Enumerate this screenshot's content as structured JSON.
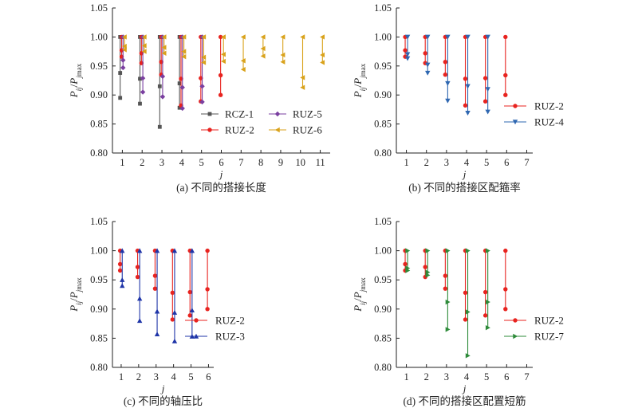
{
  "chart_data": [
    {
      "type": "line",
      "caption": "(a) 不同的搭接长度",
      "xlabel": "j",
      "ylabel": "P_ij/P_jmax",
      "ylim": [
        0.8,
        1.05
      ],
      "yticks": [
        "0.80",
        "0.85",
        "0.90",
        "0.95",
        "1.00",
        "1.05"
      ],
      "xticks": [
        1,
        2,
        3,
        4,
        5,
        6,
        7,
        8,
        9,
        10,
        11
      ],
      "xlim": [
        0.5,
        11.5
      ],
      "legend": {
        "position": "bottom-right",
        "columns": 2,
        "order": [
          "RCZ-1",
          "RUZ-5",
          "RUZ-2",
          "RUZ-6"
        ]
      },
      "series": [
        {
          "name": "RCZ-1",
          "color": "#555555",
          "marker": "square",
          "groups": [
            {
              "j": 1,
              "values": [
                1.0,
                0.938,
                0.895
              ]
            },
            {
              "j": 2,
              "values": [
                1.0,
                0.928,
                0.885
              ]
            },
            {
              "j": 3,
              "values": [
                1.0,
                0.915,
                0.845
              ]
            },
            {
              "j": 4,
              "values": [
                1.0,
                0.92,
                0.878
              ]
            }
          ]
        },
        {
          "name": "RUZ-2",
          "color": "#e8231f",
          "marker": "circle",
          "groups": [
            {
              "j": 1,
              "values": [
                1.0,
                0.977,
                0.966
              ]
            },
            {
              "j": 2,
              "values": [
                1.0,
                0.972,
                0.955
              ]
            },
            {
              "j": 3,
              "values": [
                1.0,
                0.957,
                0.935
              ]
            },
            {
              "j": 4,
              "values": [
                1.0,
                0.928,
                0.882
              ]
            },
            {
              "j": 5,
              "values": [
                1.0,
                0.929,
                0.889
              ]
            },
            {
              "j": 6,
              "values": [
                1.0,
                0.934,
                0.9
              ]
            }
          ]
        },
        {
          "name": "RUZ-5",
          "color": "#7a3fa0",
          "marker": "diamond",
          "groups": [
            {
              "j": 1,
              "values": [
                1.0,
                0.96,
                0.947
              ]
            },
            {
              "j": 2,
              "values": [
                1.0,
                0.929,
                0.905
              ]
            },
            {
              "j": 3,
              "values": [
                1.0,
                0.932,
                0.897
              ]
            },
            {
              "j": 4,
              "values": [
                1.0,
                0.913,
                0.877
              ]
            },
            {
              "j": 5,
              "values": [
                1.0,
                0.915,
                0.888
              ]
            }
          ]
        },
        {
          "name": "RUZ-6",
          "color": "#d9a21b",
          "marker": "triangle-left",
          "groups": [
            {
              "j": 1,
              "values": [
                1.0,
                0.984,
                0.978
              ]
            },
            {
              "j": 2,
              "values": [
                1.0,
                0.985,
                0.975
              ]
            },
            {
              "j": 3,
              "values": [
                1.0,
                0.982,
                0.972
              ]
            },
            {
              "j": 4,
              "values": [
                1.0,
                0.975,
                0.966
              ]
            },
            {
              "j": 5,
              "values": [
                1.0,
                0.965,
                0.956
              ]
            },
            {
              "j": 6,
              "values": [
                1.0,
                0.97,
                0.958
              ]
            },
            {
              "j": 7,
              "values": [
                1.0,
                0.959,
                0.944
              ]
            },
            {
              "j": 8,
              "values": [
                1.0,
                0.98,
                0.967
              ]
            },
            {
              "j": 9,
              "values": [
                1.0,
                0.969,
                0.957
              ]
            },
            {
              "j": 10,
              "values": [
                1.0,
                0.93,
                0.913
              ]
            },
            {
              "j": 11,
              "values": [
                1.0,
                0.969,
                0.956
              ]
            }
          ]
        }
      ]
    },
    {
      "type": "line",
      "caption": "(b) 不同的搭接区配箍率",
      "xlabel": "j",
      "ylabel": "P_ij/P_jmax",
      "ylim": [
        0.8,
        1.05
      ],
      "yticks": [
        "0.80",
        "0.85",
        "0.90",
        "0.95",
        "1.00",
        "1.05"
      ],
      "xticks": [
        1,
        2,
        3,
        4,
        5,
        6,
        7
      ],
      "xlim": [
        0.5,
        7.3
      ],
      "legend": {
        "position": "bottom-right",
        "columns": 1,
        "order": [
          "RUZ-2",
          "RUZ-4"
        ]
      },
      "series": [
        {
          "name": "RUZ-2",
          "color": "#e8231f",
          "marker": "circle",
          "groups": [
            {
              "j": 1,
              "values": [
                1.0,
                0.977,
                0.966
              ]
            },
            {
              "j": 2,
              "values": [
                1.0,
                0.972,
                0.955
              ]
            },
            {
              "j": 3,
              "values": [
                1.0,
                0.957,
                0.935
              ]
            },
            {
              "j": 4,
              "values": [
                1.0,
                0.928,
                0.882
              ]
            },
            {
              "j": 5,
              "values": [
                1.0,
                0.929,
                0.889
              ]
            },
            {
              "j": 6,
              "values": [
                1.0,
                0.934,
                0.9
              ]
            }
          ]
        },
        {
          "name": "RUZ-4",
          "color": "#2e67b1",
          "marker": "triangle-down",
          "groups": [
            {
              "j": 1,
              "values": [
                1.0,
                0.97,
                0.963
              ]
            },
            {
              "j": 2,
              "values": [
                1.0,
                0.952,
                0.938
              ]
            },
            {
              "j": 3,
              "values": [
                1.0,
                0.92,
                0.89
              ]
            },
            {
              "j": 4,
              "values": [
                1.0,
                0.915,
                0.869
              ]
            },
            {
              "j": 5,
              "values": [
                1.0,
                0.91,
                0.871
              ]
            }
          ]
        }
      ]
    },
    {
      "type": "line",
      "caption": "(c) 不同的轴压比",
      "xlabel": "j",
      "ylabel": "P_ij/P_jmax",
      "ylim": [
        0.8,
        1.05
      ],
      "yticks": [
        "0.80",
        "0.85",
        "0.90",
        "0.95",
        "1.00",
        "1.05"
      ],
      "xticks": [
        1,
        2,
        3,
        4,
        5,
        6
      ],
      "xlim": [
        0.5,
        6.3
      ],
      "legend": {
        "position": "bottom-right",
        "columns": 1,
        "order": [
          "RUZ-2",
          "RUZ-3"
        ]
      },
      "series": [
        {
          "name": "RUZ-2",
          "color": "#e8231f",
          "marker": "circle",
          "groups": [
            {
              "j": 1,
              "values": [
                1.0,
                0.977,
                0.966
              ]
            },
            {
              "j": 2,
              "values": [
                1.0,
                0.972,
                0.955
              ]
            },
            {
              "j": 3,
              "values": [
                1.0,
                0.957,
                0.935
              ]
            },
            {
              "j": 4,
              "values": [
                1.0,
                0.928,
                0.882
              ]
            },
            {
              "j": 5,
              "values": [
                1.0,
                0.929,
                0.889
              ]
            },
            {
              "j": 6,
              "values": [
                1.0,
                0.934,
                0.9
              ]
            }
          ]
        },
        {
          "name": "RUZ-3",
          "color": "#1f35a8",
          "marker": "triangle-up",
          "groups": [
            {
              "j": 1,
              "values": [
                1.0,
                0.95,
                0.94
              ]
            },
            {
              "j": 2,
              "values": [
                1.0,
                0.918,
                0.88
              ]
            },
            {
              "j": 3,
              "values": [
                1.0,
                0.896,
                0.857
              ]
            },
            {
              "j": 4,
              "values": [
                1.0,
                0.894,
                0.845
              ]
            },
            {
              "j": 5,
              "values": [
                1.0,
                0.898,
                0.853
              ]
            }
          ]
        }
      ]
    },
    {
      "type": "line",
      "caption": "(d) 不同的搭接区配置短筋",
      "xlabel": "j",
      "ylabel": "P_ij/P_jmax",
      "ylim": [
        0.8,
        1.05
      ],
      "yticks": [
        "0.80",
        "0.85",
        "0.90",
        "0.95",
        "1.00",
        "1.05"
      ],
      "xticks": [
        1,
        2,
        3,
        4,
        5,
        6,
        7
      ],
      "xlim": [
        0.5,
        7.3
      ],
      "legend": {
        "position": "bottom-right",
        "columns": 1,
        "order": [
          "RUZ-2",
          "RUZ-7"
        ]
      },
      "series": [
        {
          "name": "RUZ-2",
          "color": "#e8231f",
          "marker": "circle",
          "groups": [
            {
              "j": 1,
              "values": [
                1.0,
                0.977,
                0.966
              ]
            },
            {
              "j": 2,
              "values": [
                1.0,
                0.972,
                0.955
              ]
            },
            {
              "j": 3,
              "values": [
                1.0,
                0.957,
                0.935
              ]
            },
            {
              "j": 4,
              "values": [
                1.0,
                0.928,
                0.882
              ]
            },
            {
              "j": 5,
              "values": [
                1.0,
                0.929,
                0.889
              ]
            },
            {
              "j": 6,
              "values": [
                1.0,
                0.934,
                0.9
              ]
            }
          ]
        },
        {
          "name": "RUZ-7",
          "color": "#2e8b3a",
          "marker": "triangle-right",
          "groups": [
            {
              "j": 1,
              "values": [
                1.0,
                0.97,
                0.966
              ]
            },
            {
              "j": 2,
              "values": [
                1.0,
                0.963,
                0.958
              ]
            },
            {
              "j": 3,
              "values": [
                1.0,
                0.912,
                0.865
              ]
            },
            {
              "j": 4,
              "values": [
                1.0,
                0.895,
                0.82
              ]
            },
            {
              "j": 5,
              "values": [
                1.0,
                0.912,
                0.868
              ]
            }
          ]
        }
      ]
    }
  ]
}
